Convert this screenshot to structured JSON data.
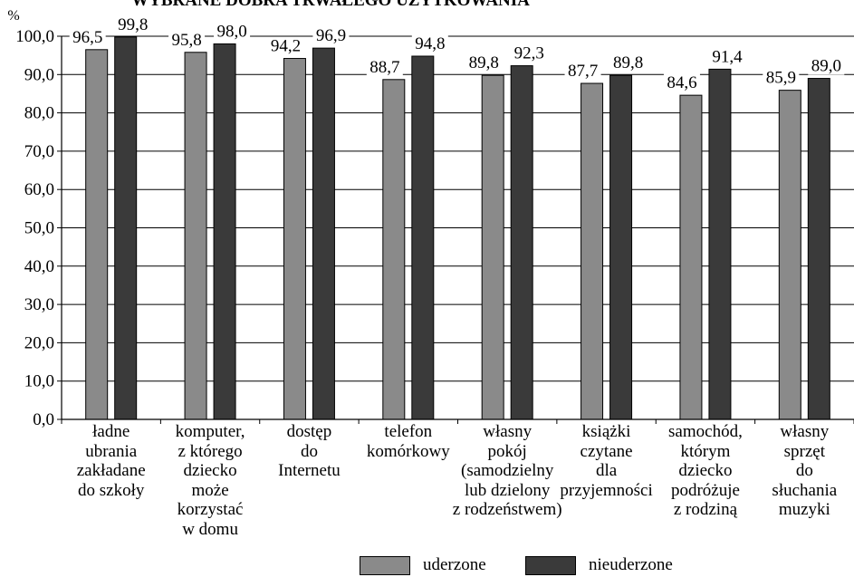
{
  "chart_data": {
    "type": "bar",
    "title": "WYBRANE DOBRA TRWAŁEGO UŻYTKOWANIA",
    "ylabel": "%",
    "ylim": [
      0,
      100
    ],
    "yticks": [
      "0,0",
      "10,0",
      "20,0",
      "30,0",
      "40,0",
      "50,0",
      "60,0",
      "70,0",
      "80,0",
      "90,0",
      "100,0"
    ],
    "grid": true,
    "legend_position": "bottom",
    "categories": [
      "ładne\nubrania\nzakładane\ndo szkoły",
      "komputer,\nz którego\ndziecko\nmoże\nkorzystać\nw domu",
      "dostęp\ndo\nInternetu",
      "telefon\nkomórkowy",
      "własny\npokój\n(samodzielny\nlub dzielony\nz rodzeństwem)",
      "książki\nczytane\ndla\nprzyjemności",
      "samochód,\nktórym\ndziecko\npodróżuje\nz rodziną",
      "własny\nsprzęt\ndo\nsłuchania\nmuzyki"
    ],
    "series": [
      {
        "name": "uderzone",
        "color": "#8a8a8a",
        "values": [
          96.5,
          95.8,
          94.2,
          88.7,
          89.8,
          87.7,
          84.6,
          85.9
        ],
        "labels": [
          "96,5",
          "95,8",
          "94,2",
          "88,7",
          "89,8",
          "87,7",
          "84,6",
          "85,9"
        ]
      },
      {
        "name": "nieuderzone",
        "color": "#3a3a3a",
        "values": [
          99.8,
          98.0,
          96.9,
          94.8,
          92.3,
          89.8,
          91.4,
          89.0
        ],
        "labels": [
          "99,8",
          "98,0",
          "96,9",
          "94,8",
          "92,3",
          "89,8",
          "91,4",
          "89,0"
        ]
      }
    ]
  }
}
